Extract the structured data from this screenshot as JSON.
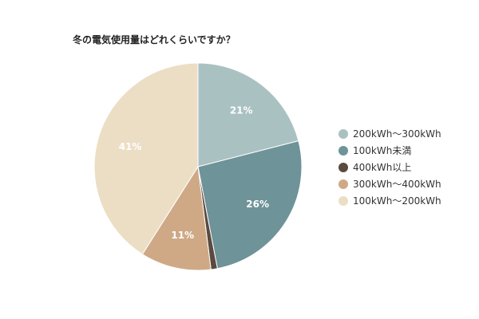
{
  "chart_data": {
    "type": "pie",
    "title": "冬の電気使用量はどれくらいですか？",
    "legend_position": "right",
    "slices": [
      {
        "label": "200kWh～300kWh",
        "value": 21,
        "display": "21%",
        "color": "#aac1c2"
      },
      {
        "label": "100kWh未満",
        "value": 26,
        "display": "26%",
        "color": "#6e9398"
      },
      {
        "label": "400kWh以上",
        "value": 1,
        "display": "",
        "color": "#5a4a40"
      },
      {
        "label": "300kWh～400kWh",
        "value": 11,
        "display": "11%",
        "color": "#cfa986"
      },
      {
        "label": "100kWh～200kWh",
        "value": 41,
        "display": "41%",
        "color": "#ecdec5"
      }
    ]
  }
}
